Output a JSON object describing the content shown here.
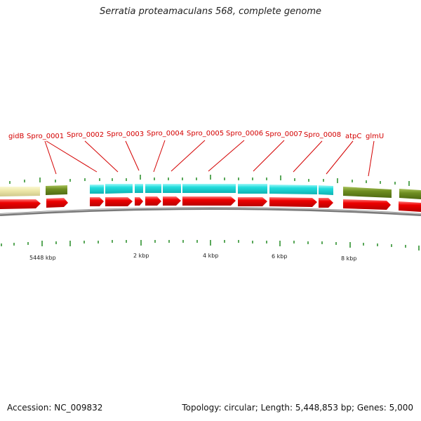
{
  "title": "Serratia proteamaculans 568, complete genome",
  "footer": {
    "accession": "Accession: NC_009832",
    "summary": "Topology: circular; Length: 5,448,853 bp; Genes: 5,000"
  },
  "colors": {
    "cds_red": "#ee0000",
    "cyan_feature": "#22dddd",
    "olive_feature": "#6f8e22",
    "khaki_feature": "#eee8aa",
    "backbone": "#888888",
    "tick_green": "#228b22",
    "label_red": "#d40000"
  },
  "gene_labels": [
    "gidB",
    "Spro_0001",
    "Spro_0002",
    "Spro_0003",
    "Spro_0004",
    "Spro_0005",
    "Spro_0006",
    "Spro_0007",
    "Spro_0008",
    "atpC",
    "glmU"
  ],
  "position_labels": [
    "5448 kbp",
    "2 kbp",
    "4 kbp",
    "6 kbp",
    "8 kbp"
  ]
}
